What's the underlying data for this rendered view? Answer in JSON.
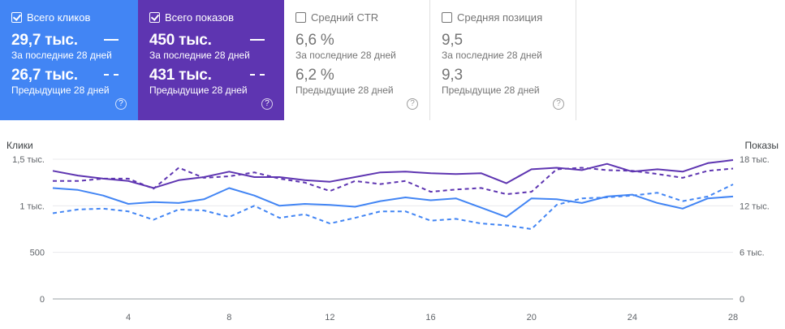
{
  "cards": [
    {
      "key": "clicks",
      "checked": true,
      "title": "Всего кликов",
      "value": "29,7 тыс.",
      "period": "За последние 28 дней",
      "prev_value": "26,7 тыс.",
      "prev_period": "Предыдущие 28 дней",
      "help": "?"
    },
    {
      "key": "impr",
      "checked": true,
      "title": "Всего показов",
      "value": "450 тыс.",
      "period": "За последние 28 дней",
      "prev_value": "431 тыс.",
      "prev_period": "Предыдущие 28 дней",
      "help": "?"
    },
    {
      "key": "ctr",
      "checked": false,
      "title": "Средний CTR",
      "value": "6,6 %",
      "period": "За последние 28 дней",
      "prev_value": "6,2 %",
      "prev_period": "Предыдущие 28 дней",
      "help": "?"
    },
    {
      "key": "pos",
      "checked": false,
      "title": "Средняя позиция",
      "value": "9,5",
      "period": "За последние 28 дней",
      "prev_value": "9,3",
      "prev_period": "Предыдущие 28 дней",
      "help": "?"
    }
  ],
  "chart_data": {
    "type": "line",
    "x": [
      1,
      2,
      3,
      4,
      5,
      6,
      7,
      8,
      9,
      10,
      11,
      12,
      13,
      14,
      15,
      16,
      17,
      18,
      19,
      20,
      21,
      22,
      23,
      24,
      25,
      26,
      27,
      28
    ],
    "x_ticks": [
      "4",
      "8",
      "12",
      "16",
      "20",
      "24",
      "28"
    ],
    "x_tick_values": [
      4,
      8,
      12,
      16,
      20,
      24,
      28
    ],
    "ylabel_left": "Клики",
    "ylabel_right": "Показы",
    "y_left_ticks": [
      "0",
      "500",
      "1 тыс.",
      "1,5 тыс."
    ],
    "y_left_tick_values": [
      0,
      500,
      1000,
      1500
    ],
    "y_right_ticks": [
      "0",
      "6 тыс.",
      "12 тыс.",
      "18 тыс."
    ],
    "y_right_tick_values": [
      0,
      6000,
      12000,
      18000
    ],
    "ylim_left": [
      0,
      1500
    ],
    "ylim_right": [
      0,
      18000
    ],
    "grid": true,
    "series": [
      {
        "key": "clicks_current",
        "axis": "left",
        "style": "solid",
        "color": "#4285f4",
        "values": [
          1190,
          1170,
          1110,
          1020,
          1040,
          1030,
          1070,
          1190,
          1110,
          1000,
          1020,
          1010,
          990,
          1050,
          1090,
          1060,
          1080,
          980,
          880,
          1080,
          1070,
          1030,
          1100,
          1120,
          1030,
          970,
          1080,
          1100
        ]
      },
      {
        "key": "clicks_previous",
        "axis": "left",
        "style": "dashed",
        "color": "#4285f4",
        "values": [
          920,
          960,
          970,
          940,
          850,
          960,
          950,
          880,
          1000,
          870,
          910,
          810,
          870,
          940,
          940,
          840,
          860,
          810,
          790,
          750,
          1010,
          1080,
          1090,
          1110,
          1140,
          1050,
          1100,
          1230
        ]
      },
      {
        "key": "impr_current",
        "axis": "right",
        "style": "solid",
        "color": "#5e35b1",
        "values": [
          16500,
          15900,
          15500,
          15200,
          14300,
          15300,
          15700,
          16400,
          15700,
          15700,
          15300,
          15100,
          15700,
          16300,
          16400,
          16200,
          16100,
          16200,
          14900,
          16700,
          16900,
          16600,
          17400,
          16400,
          16700,
          16400,
          17500,
          17900
        ]
      },
      {
        "key": "impr_previous",
        "axis": "right",
        "style": "dashed",
        "color": "#5e35b1",
        "values": [
          15200,
          15200,
          15500,
          15500,
          14200,
          16900,
          15600,
          15800,
          16300,
          15500,
          15000,
          13900,
          15200,
          14800,
          15200,
          13800,
          14100,
          14300,
          13500,
          13800,
          16700,
          16900,
          16600,
          16500,
          16100,
          15600,
          16500,
          16800
        ]
      }
    ]
  }
}
